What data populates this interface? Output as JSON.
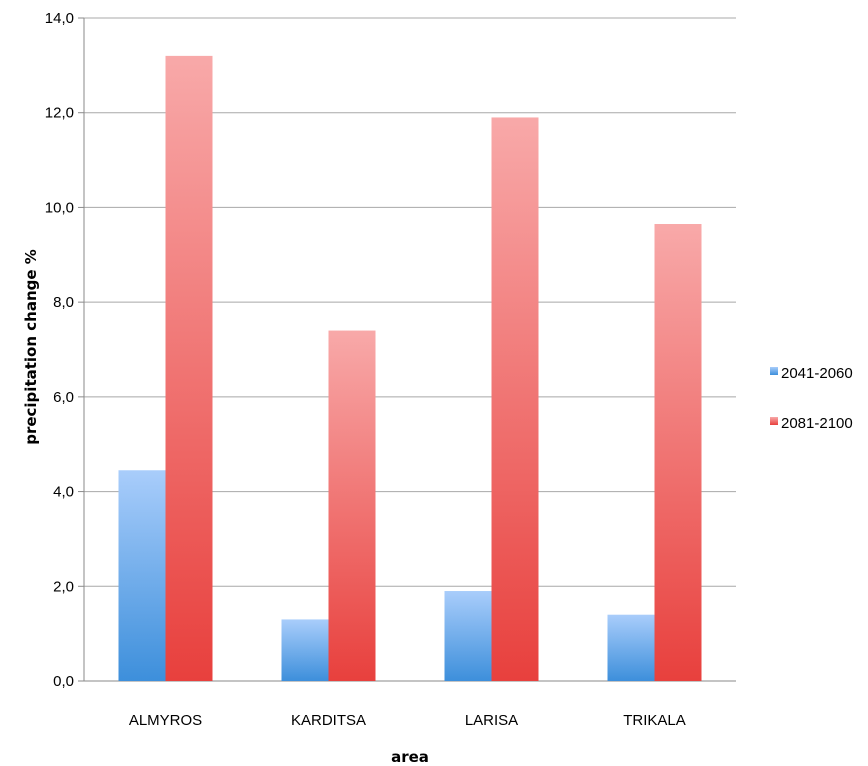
{
  "chart_data": {
    "type": "bar",
    "title": "",
    "xlabel": "area",
    "ylabel": "precipitation change %",
    "categories": [
      "ALMYROS",
      "KARDITSA",
      "LARISA",
      "TRIKALA"
    ],
    "series": [
      {
        "name": "2041-2060",
        "values": [
          4.45,
          1.3,
          1.9,
          1.4
        ],
        "color_top": "#a9cdfb",
        "color_bottom": "#3d8fdb"
      },
      {
        "name": "2081-2100",
        "values": [
          13.2,
          7.4,
          11.9,
          9.65
        ],
        "color_top": "#f8a9a9",
        "color_bottom": "#e8403d"
      }
    ],
    "ylim": [
      0,
      14
    ],
    "yticks": [
      "0,0",
      "2,0",
      "4,0",
      "6,0",
      "8,0",
      "10,0",
      "12,0",
      "14,0"
    ],
    "grid": true,
    "legend_position": "right"
  }
}
